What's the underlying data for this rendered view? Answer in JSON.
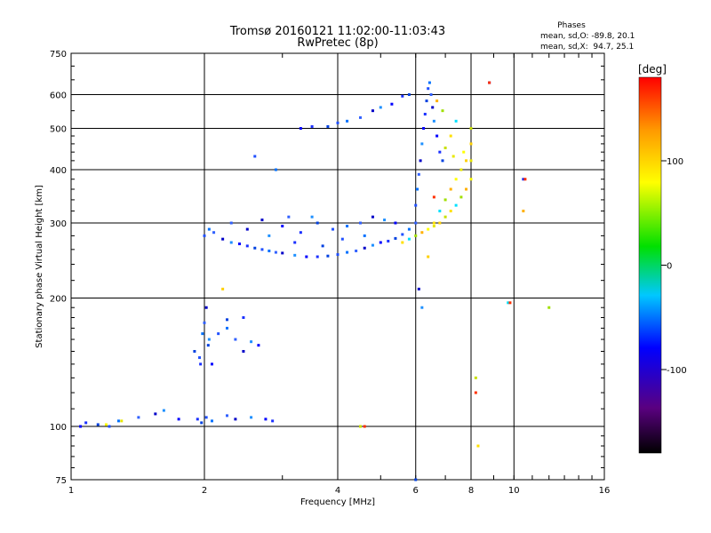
{
  "chart_data": {
    "type": "scatter",
    "title": "Tromsø 20160121 11:02:00-11:03:43",
    "subtitle": "RwPretec (8p)",
    "xlabel": "Frequency [MHz]",
    "ylabel": "Stationary phase Virtual Height [km]",
    "xscale": "log",
    "yscale": "log",
    "xlim": [
      1,
      16
    ],
    "ylim": [
      75,
      750
    ],
    "grid": true,
    "x_ticks": [
      1,
      2,
      4,
      6,
      8,
      10,
      16
    ],
    "y_ticks": [
      75,
      100,
      200,
      300,
      400,
      500,
      600,
      750
    ],
    "stats": {
      "heading": "Phases",
      "line1": "mean, sd,O: -89.8, 20.1",
      "line2": "mean, sd,X:  94.7, 25.1"
    },
    "colorbar": {
      "label": "[deg]",
      "range": [
        -180,
        180
      ],
      "ticks": [
        100,
        0,
        -100
      ],
      "colormap": "rainbow (black-purple-blue-cyan-green-yellow-orange-red)"
    },
    "series": [
      {
        "mode": "O",
        "phase_mean": -89.8,
        "phase_sd": 20.1,
        "points": [
          [
            1.05,
            100
          ],
          [
            1.08,
            102
          ],
          [
            1.15,
            101
          ],
          [
            1.22,
            100
          ],
          [
            1.28,
            103
          ],
          [
            1.42,
            105
          ],
          [
            1.55,
            107
          ],
          [
            1.62,
            109
          ],
          [
            1.75,
            104
          ],
          [
            1.93,
            104
          ],
          [
            1.97,
            102
          ],
          [
            2.02,
            105
          ],
          [
            2.08,
            103
          ],
          [
            2.25,
            106
          ],
          [
            2.35,
            104
          ],
          [
            2.55,
            105
          ],
          [
            2.75,
            104
          ],
          [
            2.85,
            103
          ],
          [
            1.9,
            150
          ],
          [
            1.95,
            145
          ],
          [
            1.98,
            165
          ],
          [
            2.0,
            175
          ],
          [
            2.02,
            190
          ],
          [
            2.05,
            160
          ],
          [
            2.08,
            140
          ],
          [
            1.96,
            140
          ],
          [
            2.04,
            155
          ],
          [
            2.15,
            165
          ],
          [
            2.25,
            170
          ],
          [
            2.35,
            160
          ],
          [
            2.45,
            150
          ],
          [
            2.55,
            158
          ],
          [
            2.65,
            155
          ],
          [
            2.45,
            180
          ],
          [
            2.25,
            178
          ],
          [
            2.0,
            280
          ],
          [
            2.05,
            290
          ],
          [
            2.1,
            285
          ],
          [
            2.2,
            275
          ],
          [
            2.3,
            270
          ],
          [
            2.4,
            268
          ],
          [
            2.5,
            265
          ],
          [
            2.6,
            262
          ],
          [
            2.7,
            260
          ],
          [
            2.8,
            258
          ],
          [
            2.9,
            256
          ],
          [
            3.0,
            255
          ],
          [
            3.2,
            252
          ],
          [
            3.4,
            250
          ],
          [
            3.6,
            250
          ],
          [
            3.8,
            251
          ],
          [
            4.0,
            253
          ],
          [
            4.2,
            256
          ],
          [
            4.4,
            258
          ],
          [
            4.6,
            262
          ],
          [
            4.8,
            266
          ],
          [
            5.0,
            270
          ],
          [
            5.2,
            272
          ],
          [
            5.4,
            276
          ],
          [
            5.6,
            282
          ],
          [
            5.8,
            290
          ],
          [
            6.0,
            300
          ],
          [
            2.5,
            290
          ],
          [
            2.8,
            280
          ],
          [
            3.0,
            295
          ],
          [
            3.3,
            285
          ],
          [
            3.6,
            300
          ],
          [
            3.9,
            290
          ],
          [
            4.2,
            295
          ],
          [
            4.5,
            300
          ],
          [
            4.8,
            310
          ],
          [
            5.1,
            305
          ],
          [
            5.4,
            300
          ],
          [
            3.2,
            270
          ],
          [
            3.7,
            265
          ],
          [
            4.1,
            275
          ],
          [
            4.6,
            280
          ],
          [
            2.3,
            300
          ],
          [
            2.7,
            305
          ],
          [
            3.5,
            310
          ],
          [
            3.3,
            500
          ],
          [
            3.5,
            505
          ],
          [
            3.8,
            505
          ],
          [
            4.0,
            515
          ],
          [
            4.2,
            520
          ],
          [
            4.5,
            530
          ],
          [
            4.8,
            550
          ],
          [
            5.0,
            560
          ],
          [
            5.3,
            570
          ],
          [
            5.6,
            595
          ],
          [
            5.8,
            600
          ],
          [
            6.0,
            330
          ],
          [
            6.05,
            360
          ],
          [
            6.1,
            390
          ],
          [
            6.15,
            420
          ],
          [
            6.2,
            460
          ],
          [
            6.25,
            500
          ],
          [
            6.3,
            540
          ],
          [
            6.35,
            580
          ],
          [
            6.4,
            620
          ],
          [
            6.45,
            640
          ],
          [
            6.5,
            600
          ],
          [
            6.55,
            560
          ],
          [
            6.6,
            520
          ],
          [
            6.7,
            480
          ],
          [
            6.8,
            440
          ],
          [
            6.9,
            420
          ],
          [
            2.6,
            430
          ],
          [
            2.9,
            400
          ],
          [
            3.1,
            310
          ],
          [
            6.1,
            210
          ],
          [
            6.2,
            190
          ],
          [
            8.8,
            640
          ],
          [
            10.5,
            380
          ],
          [
            6.0,
            75
          ]
        ]
      },
      {
        "mode": "X",
        "phase_mean": 94.7,
        "phase_sd": 25.1,
        "points": [
          [
            1.2,
            101
          ],
          [
            1.3,
            103
          ],
          [
            2.2,
            210
          ],
          [
            4.5,
            100
          ],
          [
            5.6,
            270
          ],
          [
            5.8,
            275
          ],
          [
            6.0,
            280
          ],
          [
            6.2,
            285
          ],
          [
            6.4,
            290
          ],
          [
            6.6,
            295
          ],
          [
            6.8,
            300
          ],
          [
            7.0,
            310
          ],
          [
            7.2,
            320
          ],
          [
            7.4,
            330
          ],
          [
            7.6,
            345
          ],
          [
            7.8,
            360
          ],
          [
            8.0,
            380
          ],
          [
            8.0,
            420
          ],
          [
            8.0,
            460
          ],
          [
            8.0,
            500
          ],
          [
            6.6,
            300
          ],
          [
            6.8,
            320
          ],
          [
            7.0,
            340
          ],
          [
            7.2,
            360
          ],
          [
            7.4,
            380
          ],
          [
            7.6,
            400
          ],
          [
            7.8,
            420
          ],
          [
            7.0,
            450
          ],
          [
            7.2,
            480
          ],
          [
            7.4,
            520
          ],
          [
            6.9,
            550
          ],
          [
            6.7,
            580
          ],
          [
            7.7,
            440
          ],
          [
            7.3,
            430
          ],
          [
            6.4,
            250
          ],
          [
            8.2,
            130
          ],
          [
            8.3,
            90
          ],
          [
            9.7,
            195
          ],
          [
            12.0,
            190
          ],
          [
            10.5,
            320
          ]
        ]
      }
    ]
  }
}
